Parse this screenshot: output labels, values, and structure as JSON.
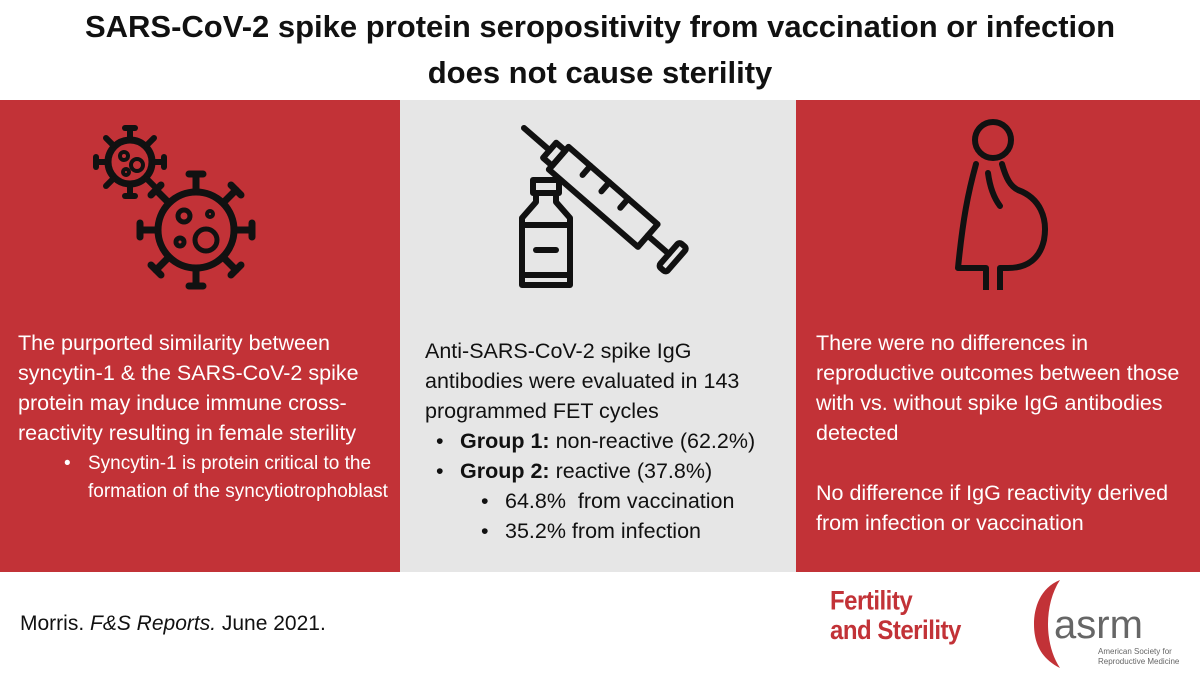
{
  "title": "SARS-CoV-2 spike protein seropositivity from vaccination or infection does not cause sterility",
  "colors": {
    "accent_red": "#c23237",
    "panel_gray": "#e6e6e6"
  },
  "panels": {
    "left": {
      "icon": "virus-icon",
      "text": "The purported similarity between syncytin-1 & the SARS-CoV-2 spike protein may induce immune cross-reactivity resulting in female sterility",
      "bullets": [
        "Syncytin-1 is protein critical to the formation of the syncytiotrophoblast"
      ]
    },
    "middle": {
      "icon": "syringe-vial-icon",
      "text": "Anti-SARS-CoV-2 spike IgG antibodies were evaluated in 143 programmed FET cycles",
      "groups": [
        {
          "label": "Group 1:",
          "detail": " non-reactive (62.2%)"
        },
        {
          "label": "Group 2:",
          "detail": " reactive (37.8%)"
        }
      ],
      "sub_bullets": [
        "64.8%  from vaccination",
        "35.2% from infection"
      ]
    },
    "right": {
      "icon": "pregnant-woman-icon",
      "text1": "There were no differences in reproductive outcomes between those with vs. without spike IgG antibodies detected",
      "text2": "No difference if IgG reactivity derived from infection or vaccination"
    }
  },
  "citation": {
    "author": "Morris. ",
    "journal": "F&S Reports.",
    "date": " June 2021."
  },
  "logos": {
    "journal_line1": "Fertility",
    "journal_line2": "and Sterility",
    "society_abbrev": "asrm",
    "society_line1": "American Society for",
    "society_line2": "Reproductive Medicine"
  }
}
